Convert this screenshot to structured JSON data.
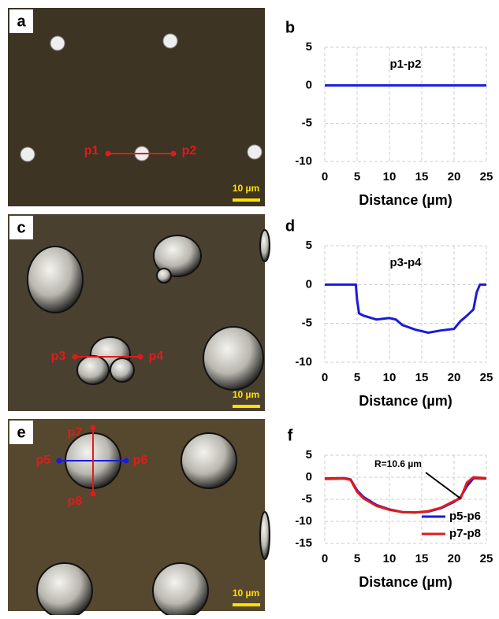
{
  "images": [
    {
      "panel": "a",
      "labels": [
        "p1",
        "p2"
      ],
      "scale_bar": "10 µm"
    },
    {
      "panel": "c",
      "labels": [
        "p3",
        "p4"
      ],
      "scale_bar": "10 µm"
    },
    {
      "panel": "e",
      "labels": [
        "p5",
        "p6",
        "p7",
        "p8"
      ],
      "scale_bar": "10 µm"
    }
  ],
  "chart_data": [
    {
      "type": "line",
      "panel": "b",
      "title": "p1-p2",
      "xlabel": "Distance (µm)",
      "x": [
        0,
        5,
        10,
        15,
        20,
        25
      ],
      "series": [
        {
          "color": "#1a1adb",
          "values": [
            0,
            0,
            0,
            0,
            0,
            0
          ]
        }
      ],
      "xlim": [
        0,
        25
      ],
      "xticks": [
        0,
        5,
        10,
        15,
        20,
        25
      ],
      "ylim": [
        -10,
        5
      ],
      "yticks": [
        -10,
        -5,
        0,
        5
      ],
      "grid": true
    },
    {
      "type": "line",
      "panel": "d",
      "title": "p3-p4",
      "xlabel": "Distance (µm)",
      "x": [
        0,
        4.8,
        5,
        5.3,
        6,
        8,
        10,
        11,
        12,
        14,
        16,
        18,
        20,
        21,
        22,
        23,
        23.5,
        24,
        25
      ],
      "series": [
        {
          "color": "#1a1adb",
          "values": [
            0,
            0,
            -2,
            -3.7,
            -4,
            -4.5,
            -4.3,
            -4.5,
            -5.2,
            -5.8,
            -6.2,
            -5.9,
            -5.7,
            -4.7,
            -4,
            -3.2,
            -1,
            0,
            0
          ]
        }
      ],
      "xlim": [
        0,
        25
      ],
      "xticks": [
        0,
        5,
        10,
        15,
        20,
        25
      ],
      "ylim": [
        -10,
        5
      ],
      "yticks": [
        -10,
        -5,
        0,
        5
      ],
      "grid": true
    },
    {
      "type": "line",
      "panel": "f",
      "annotation": "R=10.6 µm",
      "annotation_point": [
        21,
        -4.8
      ],
      "xlabel": "Distance (µm)",
      "x": [
        0,
        3,
        4,
        5,
        6,
        8,
        10,
        12,
        14,
        16,
        18,
        20,
        21,
        22,
        23,
        25
      ],
      "series": [
        {
          "name": "p5-p6",
          "color": "#1a1adb",
          "values": [
            -0.3,
            -0.2,
            -0.5,
            -3,
            -4.5,
            -6.3,
            -7.3,
            -7.9,
            -8,
            -7.8,
            -7,
            -5.6,
            -4.5,
            -2,
            -0.2,
            -0.3
          ]
        },
        {
          "name": "p7-p8",
          "color": "#e01b1b",
          "values": [
            -0.4,
            -0.3,
            -0.6,
            -3.3,
            -4.8,
            -6.5,
            -7.4,
            -7.9,
            -8,
            -7.7,
            -6.9,
            -5.4,
            -4.8,
            -1.2,
            0,
            -0.2
          ]
        }
      ],
      "xlim": [
        0,
        25
      ],
      "xticks": [
        0,
        5,
        10,
        15,
        20,
        25
      ],
      "ylim": [
        -15,
        5
      ],
      "yticks": [
        -15,
        -10,
        -5,
        0,
        5
      ],
      "grid": true,
      "legend": "lower right"
    }
  ]
}
